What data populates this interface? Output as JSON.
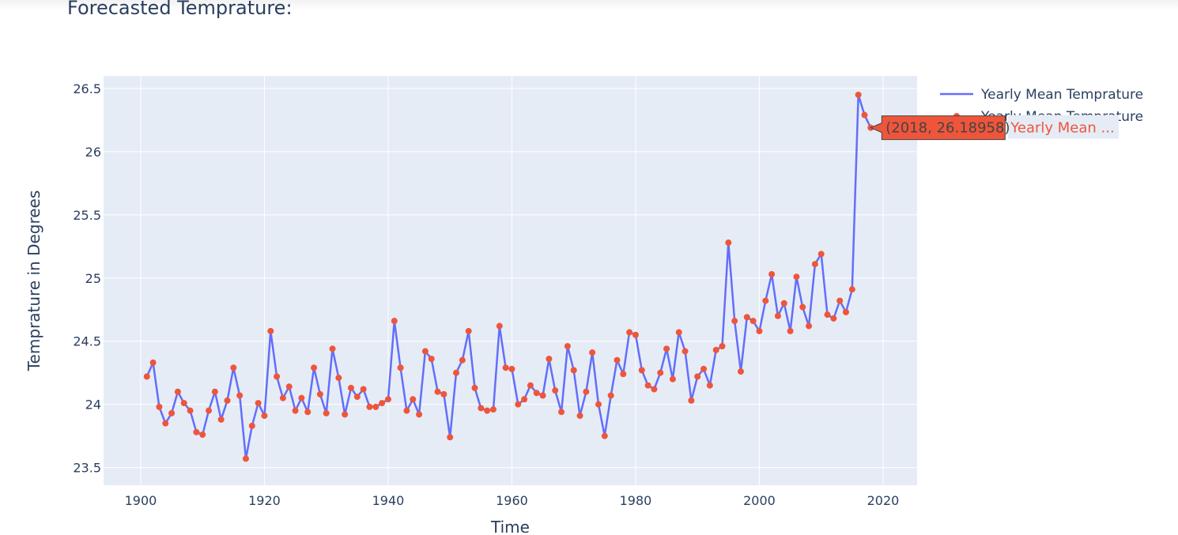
{
  "chart_data": {
    "type": "line",
    "title": "Forecasted Temprature:",
    "xlabel": "Time",
    "ylabel": "Temprature in Degrees",
    "xlim": [
      1894,
      2025.5
    ],
    "ylim": [
      23.36,
      26.6
    ],
    "xticks": [
      1900,
      1920,
      1940,
      1960,
      1980,
      2000,
      2020
    ],
    "yticks": [
      23.5,
      24,
      24.5,
      25,
      25.5,
      26,
      26.5
    ],
    "ytick_labels": [
      "23.5",
      "24",
      "24.5",
      "25",
      "25.5",
      "26",
      "26.5"
    ],
    "grid": true,
    "legend": {
      "placement": "top-right",
      "entries": [
        "Yearly Mean Temprature",
        "Yearly Mean Temprature"
      ]
    },
    "series": [
      {
        "name": "Yearly Mean Temprature",
        "mode": "lines",
        "color": "#636efa",
        "x": [
          1901,
          1902,
          1903,
          1904,
          1905,
          1906,
          1907,
          1908,
          1909,
          1910,
          1911,
          1912,
          1913,
          1914,
          1915,
          1916,
          1917,
          1918,
          1919,
          1920,
          1921,
          1922,
          1923,
          1924,
          1925,
          1926,
          1927,
          1928,
          1929,
          1930,
          1931,
          1932,
          1933,
          1934,
          1935,
          1936,
          1937,
          1938,
          1939,
          1940,
          1941,
          1942,
          1943,
          1944,
          1945,
          1946,
          1947,
          1948,
          1949,
          1950,
          1951,
          1952,
          1953,
          1954,
          1955,
          1956,
          1957,
          1958,
          1959,
          1960,
          1961,
          1962,
          1963,
          1964,
          1965,
          1966,
          1967,
          1968,
          1969,
          1970,
          1971,
          1972,
          1973,
          1974,
          1975,
          1976,
          1977,
          1978,
          1979,
          1980,
          1981,
          1982,
          1983,
          1984,
          1985,
          1986,
          1987,
          1988,
          1989,
          1990,
          1991,
          1992,
          1993,
          1994,
          1995,
          1996,
          1997,
          1998,
          1999,
          2000,
          2001,
          2002,
          2003,
          2004,
          2005,
          2006,
          2007,
          2008,
          2009,
          2010,
          2011,
          2012,
          2013,
          2014,
          2015,
          2016,
          2017,
          2018
        ],
        "y": [
          24.22,
          24.33,
          23.98,
          23.85,
          23.93,
          24.1,
          24.01,
          23.95,
          23.78,
          23.76,
          23.95,
          24.1,
          23.88,
          24.03,
          24.29,
          24.07,
          23.57,
          23.83,
          24.01,
          23.91,
          24.58,
          24.22,
          24.05,
          24.14,
          23.95,
          24.05,
          23.94,
          24.29,
          24.08,
          23.93,
          24.44,
          24.21,
          23.92,
          24.13,
          24.06,
          24.12,
          23.98,
          23.98,
          24.01,
          24.04,
          24.66,
          24.29,
          23.95,
          24.04,
          23.92,
          24.42,
          24.36,
          24.1,
          24.08,
          23.74,
          24.25,
          24.35,
          24.58,
          24.13,
          23.97,
          23.95,
          23.96,
          24.62,
          24.29,
          24.28,
          24.0,
          24.04,
          24.15,
          24.09,
          24.07,
          24.36,
          24.11,
          23.94,
          24.46,
          24.27,
          23.91,
          24.1,
          24.41,
          24.0,
          23.75,
          24.07,
          24.35,
          24.24,
          24.57,
          24.55,
          24.27,
          24.15,
          24.12,
          24.25,
          24.44,
          24.2,
          24.57,
          24.42,
          24.03,
          24.22,
          24.28,
          24.15,
          24.43,
          24.46,
          25.28,
          24.66,
          24.26,
          24.69,
          24.66,
          24.58,
          24.82,
          25.03,
          24.7,
          24.8,
          24.58,
          25.01,
          24.77,
          24.62,
          25.11,
          25.19,
          24.71,
          24.68,
          24.82,
          24.73,
          24.91,
          26.45,
          26.29,
          26.18958
        ]
      },
      {
        "name": "Yearly Mean Temprature",
        "mode": "markers",
        "color": "#ef553b",
        "same_points_as_series": 0
      }
    ],
    "hover": {
      "x": 2018,
      "y": 26.18958,
      "label": "(2018, 26.18958)",
      "series_label": "Yearly Mean ...",
      "bg_color": "#ef553b"
    }
  },
  "colors": {
    "plot_bg": "#e5ecf6",
    "grid": "#ffffff",
    "text": "#2a3f5f"
  }
}
